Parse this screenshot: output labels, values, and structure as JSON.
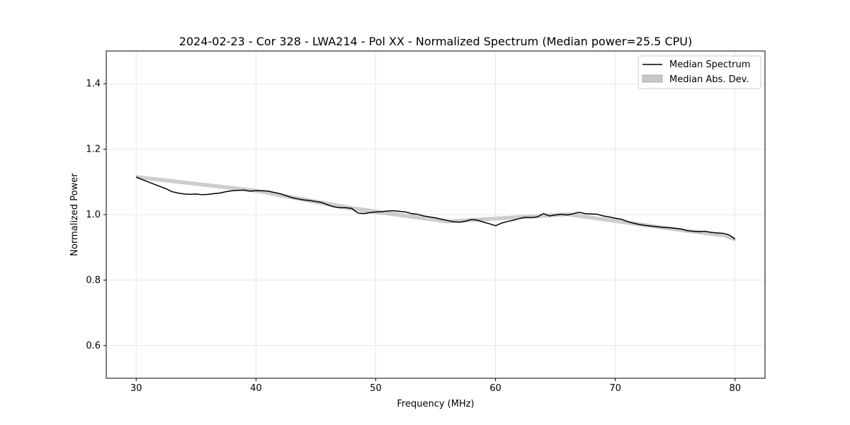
{
  "chart_data": {
    "type": "line",
    "title": "2024-02-23 - Cor 328 - LWA214 - Pol XX - Normalized Spectrum (Median power=25.5 CPU)",
    "xlabel": "Frequency (MHz)",
    "ylabel": "Normalized Power",
    "xlim": [
      27.5,
      82.5
    ],
    "ylim": [
      0.5,
      1.5
    ],
    "xticks": [
      30,
      40,
      50,
      60,
      70,
      80
    ],
    "yticks": [
      0.6,
      0.8,
      1.0,
      1.2,
      1.4
    ],
    "xtick_labels": [
      "30",
      "40",
      "50",
      "60",
      "70",
      "80"
    ],
    "ytick_labels": [
      "0.6",
      "0.8",
      "1.0",
      "1.2",
      "1.4"
    ],
    "grid": true,
    "legend_position": "top-right",
    "colors": {
      "line": "#000000",
      "band": "#c8c8c8",
      "grid": "#e6e6e6"
    },
    "series": [
      {
        "name": "Median Spectrum",
        "kind": "line",
        "x": [
          30,
          30.5,
          31,
          31.5,
          32,
          32.5,
          33,
          33.5,
          34,
          34.5,
          35,
          35.5,
          36,
          36.5,
          37,
          37.5,
          38,
          38.5,
          39,
          39.5,
          40,
          40.5,
          41,
          41.5,
          42,
          42.5,
          43,
          43.5,
          44,
          44.5,
          45,
          45.5,
          46,
          46.5,
          47,
          47.5,
          48,
          48.5,
          49,
          49.5,
          50,
          50.5,
          51,
          51.5,
          52,
          52.5,
          53,
          53.5,
          54,
          54.5,
          55,
          55.5,
          56,
          56.5,
          57,
          57.5,
          58,
          58.5,
          59,
          59.5,
          60,
          60.5,
          61,
          61.5,
          62,
          62.5,
          63,
          63.5,
          64,
          64.5,
          65,
          65.5,
          66,
          66.5,
          67,
          67.5,
          68,
          68.5,
          69,
          69.5,
          70,
          70.5,
          71,
          71.5,
          72,
          72.5,
          73,
          73.5,
          74,
          74.5,
          75,
          75.5,
          76,
          76.5,
          77,
          77.5,
          78,
          78.5,
          79,
          79.5,
          80
        ],
        "values": [
          1.115,
          1.107,
          1.1,
          1.093,
          1.086,
          1.079,
          1.07,
          1.066,
          1.063,
          1.062,
          1.063,
          1.061,
          1.062,
          1.064,
          1.066,
          1.07,
          1.073,
          1.074,
          1.075,
          1.072,
          1.073,
          1.073,
          1.072,
          1.068,
          1.064,
          1.058,
          1.052,
          1.048,
          1.045,
          1.043,
          1.04,
          1.037,
          1.03,
          1.024,
          1.021,
          1.021,
          1.019,
          1.005,
          1.003,
          1.006,
          1.008,
          1.009,
          1.011,
          1.012,
          1.01,
          1.008,
          1.003,
          1.001,
          0.996,
          0.993,
          0.99,
          0.986,
          0.982,
          0.978,
          0.977,
          0.98,
          0.985,
          0.983,
          0.977,
          0.972,
          0.966,
          0.974,
          0.979,
          0.983,
          0.988,
          0.992,
          0.991,
          0.993,
          1.003,
          0.996,
          0.999,
          1.001,
          0.999,
          1.003,
          1.007,
          1.003,
          1.002,
          1.001,
          0.996,
          0.993,
          0.989,
          0.986,
          0.979,
          0.974,
          0.97,
          0.967,
          0.965,
          0.963,
          0.961,
          0.96,
          0.958,
          0.956,
          0.951,
          0.949,
          0.948,
          0.949,
          0.946,
          0.944,
          0.943,
          0.938,
          0.925
        ]
      },
      {
        "name": "Median Abs. Dev.",
        "kind": "band",
        "x": [
          30,
          40,
          48,
          56,
          66,
          76,
          77,
          78,
          79,
          80
        ],
        "lower": [
          1.109,
          1.067,
          1.012,
          0.973,
          0.995,
          0.944,
          0.94,
          0.935,
          0.931,
          0.918
        ],
        "upper": [
          1.121,
          1.079,
          1.026,
          0.985,
          1.007,
          0.956,
          0.952,
          0.947,
          0.941,
          0.932
        ]
      }
    ]
  }
}
